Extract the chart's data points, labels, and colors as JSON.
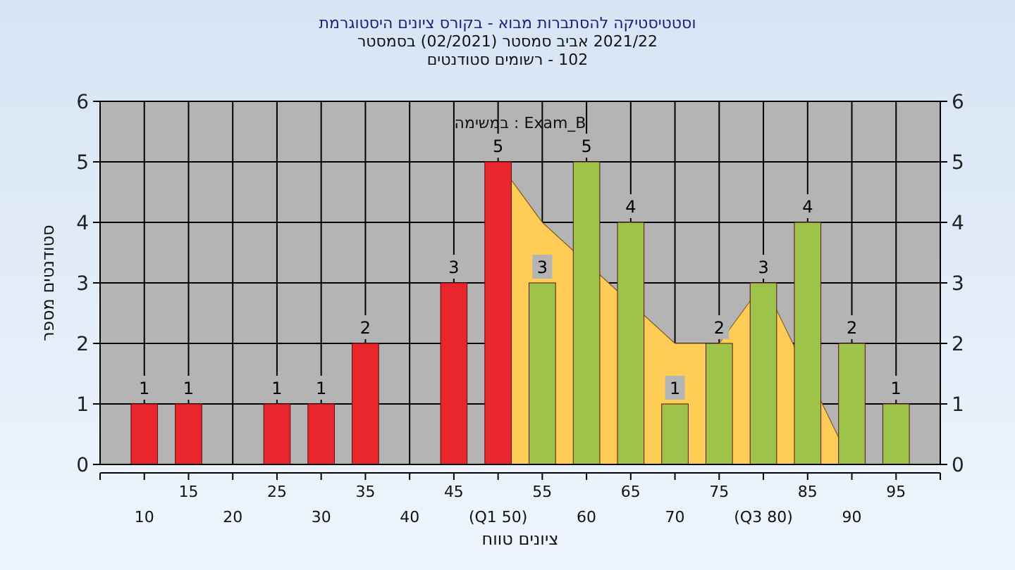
{
  "chart_data": {
    "type": "bar",
    "title": "היסטוגרמת ציונים בקורס - מבוא להסתברות וסטטיסטיקה",
    "subtitle": "בסמסטר (02/2021) סמסטר אביב 2021/22\nסטודנטים רשומים - 102",
    "xlabel": "טווח ציונים",
    "ylabel": "מספר סטודנטים",
    "annotations": [
      "במשימה : Exam_B"
    ],
    "categories": [
      "10",
      "15",
      "20",
      "25",
      "30",
      "35",
      "40",
      "45",
      "(Q1 50)",
      "55",
      "60",
      "65",
      "70",
      "75",
      "(Q3 80)",
      "85",
      "90",
      "95"
    ],
    "series": [
      {
        "type": "area",
        "color": "#ffcc55",
        "values": [
          null,
          null,
          null,
          null,
          null,
          null,
          null,
          null,
          5,
          4,
          null,
          null,
          2,
          2,
          3,
          null,
          0,
          0
        ],
        "value_labels": [
          null,
          null,
          null,
          null,
          null,
          null,
          null,
          null,
          null,
          null,
          null,
          null,
          null,
          null,
          null,
          null,
          null,
          null
        ]
      },
      {
        "colors": [
          "#e8262b",
          "#e8262b",
          null,
          "#e8262b",
          "#e8262b",
          "#e8262b",
          null,
          "#e8262b",
          "#e8262b",
          "#9dc34a",
          "#9dc34a",
          "#9dc34a",
          "#9dc34a",
          "#9dc34a",
          "#9dc34a",
          "#9dc34a",
          "#9dc34a",
          "#9dc34a"
        ],
        "values": [
          1,
          1,
          null,
          1,
          1,
          2,
          null,
          3,
          5,
          3,
          5,
          4,
          1,
          2,
          3,
          4,
          2,
          1
        ]
      }
    ],
    "data_labels": true,
    "ylim": [
      0,
      6
    ],
    "yticks": [
      0,
      1,
      2,
      3,
      4,
      5,
      6
    ],
    "y2lim": [
      0,
      6
    ],
    "y2ticks": [
      0,
      1,
      2,
      3,
      4,
      5,
      6
    ],
    "grid": true
  }
}
